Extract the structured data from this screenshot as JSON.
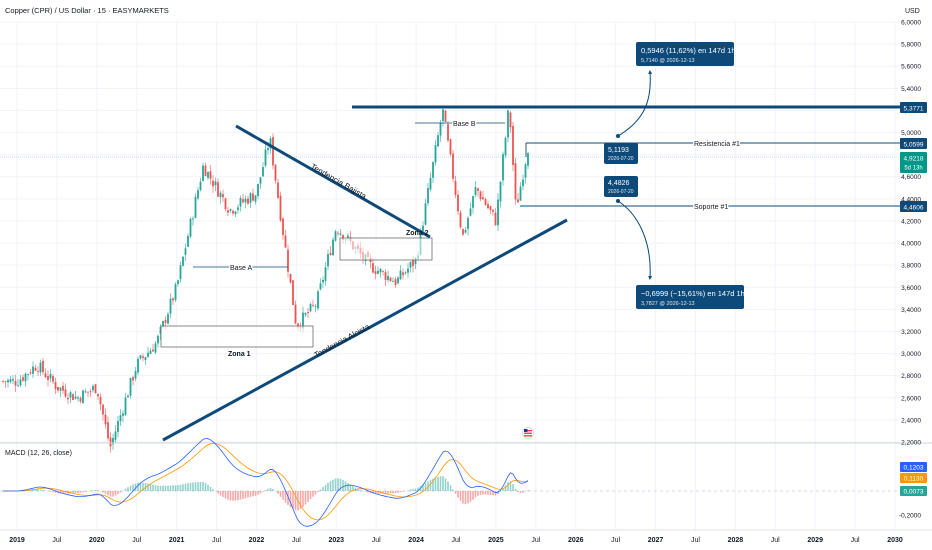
{
  "header": {
    "title": "Copper (CPR) / US Dollar · 15 · EASYMARKETS",
    "currency": "USD",
    "macd_label": "MACD (12, 26, close)"
  },
  "colors": {
    "up": "#26a69a",
    "down": "#ef5350",
    "drawing": "#0d4a7a",
    "macd_line": "#2962ff",
    "signal_line": "#ff9800",
    "badge_current": "#009688"
  },
  "main_axis": {
    "ticks": [
      "6,0000",
      "5,8000",
      "5,6000",
      "5,4000",
      "5,2000",
      "5,0000",
      "4,8000",
      "4,6000",
      "4,4000",
      "4,2000",
      "4,0000",
      "3,8000",
      "3,6000",
      "3,4000",
      "3,2000",
      "3,0000",
      "2,8000",
      "2,6000",
      "2,4000",
      "2,2000"
    ]
  },
  "macd_axis": {
    "ticks": [
      "0,2000",
      "0,0000",
      "-0,2000"
    ]
  },
  "time_axis": {
    "ticks": [
      "2019",
      "Jul",
      "2020",
      "Jul",
      "2021",
      "Jul",
      "2022",
      "Jul",
      "2023",
      "Jul",
      "2024",
      "Jul",
      "2025",
      "Jul",
      "2026",
      "Jul",
      "2027",
      "Jul",
      "2028",
      "Jul",
      "2029",
      "Jul",
      "2030"
    ]
  },
  "price_badges": {
    "high_line": "5,3771",
    "resistance": "5,0599",
    "current": "4,9218",
    "countdown": "5d 13h",
    "support": "4,4606"
  },
  "macd_badges": {
    "macd": "0,1203",
    "signal": "0,1130",
    "hist": "0,0073"
  },
  "annotations": {
    "base_a": "Base A",
    "base_b": "Base B",
    "zona_1": "Zona 1",
    "zona_2": "Zona 2",
    "tendencia_bajista": "Tendencia Bajista",
    "tendencia_alcista": "Tendencia Alcista",
    "resistencia": "Resistencia #1",
    "soporte": "Soporte #1",
    "proj_up": "0,5946 (11,62%) en 147d 1h",
    "proj_up_sub": "5,7140 @ 2026-12-13",
    "proj_down": "−0,6999 (−15,61%) en 147d 1h",
    "proj_down_sub": "3,7827 @ 2026-12-13",
    "box_res": "5,1193",
    "box_res_sub": "2026-07-20",
    "box_sup": "4,4826",
    "box_sup_sub": "2026-07-20"
  },
  "chart_data": {
    "type": "candlestick",
    "title": "Copper (CPR) / US Dollar · 15 · EASYMARKETS",
    "x_range": [
      "2019",
      "2030"
    ],
    "ylim": [
      2.2,
      6.0
    ],
    "approx_monthly_close": [
      {
        "date": "2019-01",
        "value": 2.75
      },
      {
        "date": "2019-04",
        "value": 2.9
      },
      {
        "date": "2019-07",
        "value": 2.7
      },
      {
        "date": "2019-10",
        "value": 2.6
      },
      {
        "date": "2020-01",
        "value": 2.7
      },
      {
        "date": "2020-03",
        "value": 2.15
      },
      {
        "date": "2020-07",
        "value": 2.9
      },
      {
        "date": "2020-10",
        "value": 3.1
      },
      {
        "date": "2021-01",
        "value": 3.6
      },
      {
        "date": "2021-05",
        "value": 4.7
      },
      {
        "date": "2021-09",
        "value": 4.3
      },
      {
        "date": "2022-01",
        "value": 4.45
      },
      {
        "date": "2022-03",
        "value": 4.95
      },
      {
        "date": "2022-07",
        "value": 3.25
      },
      {
        "date": "2022-10",
        "value": 3.45
      },
      {
        "date": "2023-01",
        "value": 4.15
      },
      {
        "date": "2023-06",
        "value": 3.8
      },
      {
        "date": "2023-10",
        "value": 3.65
      },
      {
        "date": "2024-01",
        "value": 3.85
      },
      {
        "date": "2024-05",
        "value": 5.2
      },
      {
        "date": "2024-08",
        "value": 4.05
      },
      {
        "date": "2024-10",
        "value": 4.5
      },
      {
        "date": "2025-01",
        "value": 4.2
      },
      {
        "date": "2025-03",
        "value": 5.25
      },
      {
        "date": "2025-04",
        "value": 4.3
      },
      {
        "date": "2025-06",
        "value": 4.92
      }
    ],
    "levels": {
      "high_line": 5.3771,
      "resistance": 5.0599,
      "current": 4.9218,
      "support": 4.4606
    },
    "projections": [
      {
        "from": 5.1193,
        "to": 5.714,
        "date": "2026-12-13"
      },
      {
        "from": 4.4826,
        "to": 3.7827,
        "date": "2026-12-13"
      }
    ],
    "macd": {
      "macd": 0.1203,
      "signal": 0.113,
      "histogram": 0.0073
    }
  }
}
